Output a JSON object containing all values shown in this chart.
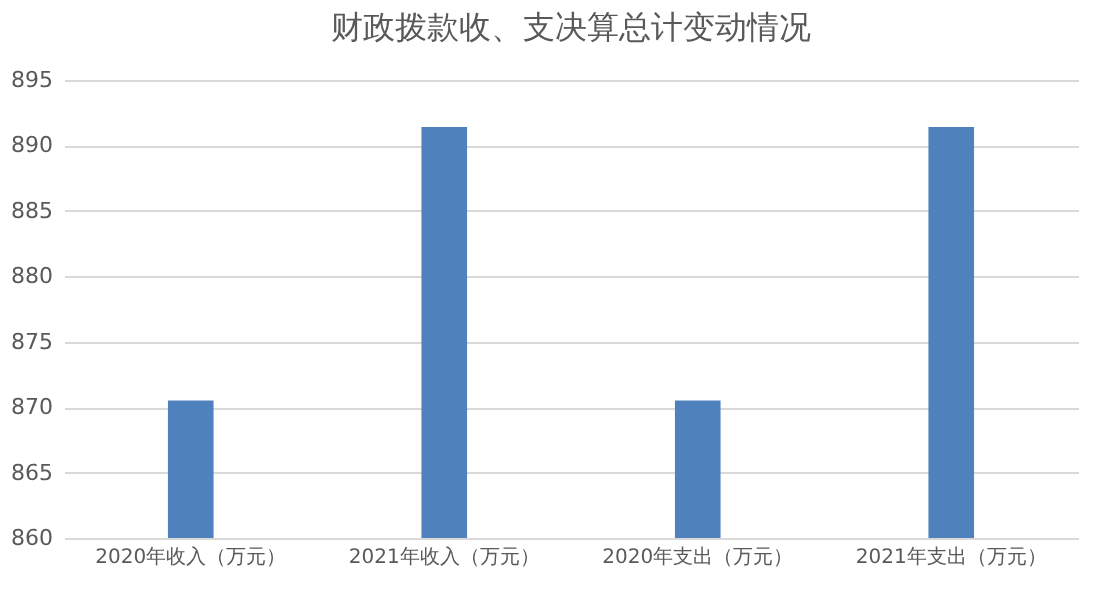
{
  "chart_data": {
    "type": "bar",
    "title": "财政拨款收、支决算总计变动情况",
    "categories": [
      "2020年收入（万元）",
      "2021年收入（万元）",
      "2020年支出（万元）",
      "2021年支出（万元）"
    ],
    "values": [
      870.5,
      891.4,
      870.5,
      891.4
    ],
    "color": "#4f81bd",
    "ylim": [
      860,
      895
    ],
    "yticks": [
      860,
      865,
      870,
      875,
      880,
      885,
      890,
      895
    ],
    "grid": "y"
  }
}
